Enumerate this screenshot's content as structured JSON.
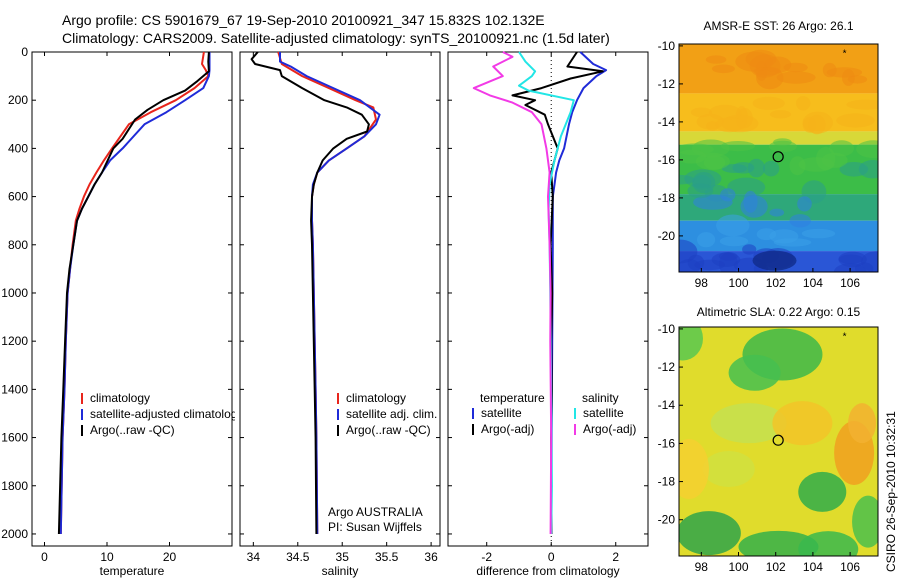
{
  "header": {
    "line1": "Argo profile: CS 5901679_67 19-Sep-2010 20100921_347 15.832S 102.132E",
    "line2": "Climatology: CARS2009. Satellite-adjusted climatology: synTS_20100921.nc (1.5d later)"
  },
  "credit": "CSIRO 26-Sep-2010 10:32:31",
  "colors": {
    "red": "#e8251c",
    "blue": "#1f2bd8",
    "black": "#000000",
    "cyan": "#22e6e6",
    "magenta": "#f23ae6"
  },
  "chart_data": [
    {
      "type": "line",
      "id": "temperature",
      "xlabel": "temperature",
      "xlim": [
        -2,
        30
      ],
      "xticks": [
        0,
        10,
        20
      ],
      "ylim": [
        2050,
        0
      ],
      "yticks": [
        0,
        200,
        400,
        600,
        800,
        1000,
        1200,
        1400,
        1600,
        1800,
        2000
      ],
      "legend": [
        "climatology",
        "satellite-adjusted climatology",
        "Argo(..raw -QC)"
      ],
      "series": [
        {
          "name": "climatology",
          "color": "red",
          "x": [
            25.5,
            25.2,
            25.8,
            26.2,
            24,
            21,
            17,
            13.5,
            10.8,
            9.5,
            8.3,
            7.2,
            6.3,
            5.6,
            5,
            4.5,
            4.1,
            3.7,
            3.4,
            3.2,
            2.9,
            2.6
          ],
          "y": [
            0,
            50,
            75,
            100,
            150,
            200,
            250,
            300,
            400,
            450,
            500,
            550,
            600,
            650,
            700,
            800,
            900,
            1000,
            1200,
            1400,
            1600,
            2000
          ]
        },
        {
          "name": "satellite-adjusted climatology",
          "color": "blue",
          "x": [
            26.4,
            26.4,
            26.4,
            26.3,
            25.4,
            22.5,
            19.5,
            16,
            12.5,
            10.5,
            9.2,
            8,
            7,
            6,
            5.2,
            4.6,
            4.1,
            3.7,
            3.4,
            3.2,
            2.9,
            2.6
          ],
          "y": [
            0,
            50,
            75,
            100,
            150,
            200,
            250,
            300,
            400,
            450,
            500,
            550,
            600,
            650,
            700,
            800,
            900,
            1000,
            1200,
            1400,
            1600,
            2000
          ]
        },
        {
          "name": "Argo(..raw -QC)",
          "color": "black",
          "x": [
            26.3,
            26.2,
            26.3,
            24.5,
            22.5,
            19,
            16.5,
            14.5,
            13.5,
            12.5,
            11,
            9.2,
            8,
            7,
            6,
            5.2,
            4.6,
            4,
            3.6,
            3.3,
            3,
            2.7,
            2.3
          ],
          "y": [
            0,
            40,
            80,
            120,
            160,
            200,
            240,
            280,
            320,
            360,
            400,
            500,
            550,
            600,
            650,
            700,
            800,
            900,
            1000,
            1200,
            1400,
            1600,
            2000
          ]
        }
      ]
    },
    {
      "type": "line",
      "id": "salinity",
      "xlabel": "salinity",
      "xlim": [
        33.85,
        36.1
      ],
      "xticks": [
        34,
        34.5,
        35,
        35.5,
        36
      ],
      "ylim": [
        2050,
        0
      ],
      "yticks": [
        0,
        200,
        400,
        600,
        800,
        1000,
        1200,
        1400,
        1600,
        1800,
        2000
      ],
      "legend": [
        "climatology",
        "satellite adj. clim.",
        "Argo(..raw -QC)"
      ],
      "annotation": [
        "Argo AUSTRALIA",
        "PI: Susan Wijffels"
      ],
      "series": [
        {
          "name": "climatology",
          "color": "red",
          "x": [
            34.28,
            34.32,
            34.55,
            34.85,
            35.15,
            35.35,
            35.38,
            35.25,
            35.05,
            34.85,
            34.72,
            34.68,
            34.66,
            34.66,
            34.67,
            34.68,
            34.69,
            34.7,
            34.71,
            34.72
          ],
          "y": [
            0,
            50,
            100,
            150,
            200,
            230,
            280,
            350,
            400,
            450,
            500,
            550,
            600,
            700,
            800,
            1000,
            1200,
            1400,
            1600,
            2000
          ]
        },
        {
          "name": "satellite adj. clim.",
          "color": "blue",
          "x": [
            34.3,
            34.3,
            34.42,
            34.6,
            34.9,
            35.2,
            35.42,
            35.38,
            35.25,
            35.05,
            34.85,
            34.72,
            34.67,
            34.66,
            34.66,
            34.67,
            34.68,
            34.69,
            34.7,
            34.71,
            34.72
          ],
          "y": [
            0,
            40,
            60,
            100,
            150,
            200,
            260,
            300,
            350,
            400,
            450,
            500,
            550,
            600,
            700,
            800,
            1000,
            1200,
            1400,
            1600,
            2000
          ]
        },
        {
          "name": "Argo(..raw -QC)",
          "color": "black",
          "x": [
            34.05,
            33.98,
            34.02,
            34.3,
            34.32,
            34.55,
            34.8,
            35.05,
            35.22,
            35.3,
            35.28,
            35.05,
            34.9,
            34.78,
            34.72,
            34.68,
            34.66,
            34.65,
            34.66,
            34.67,
            34.68,
            34.69,
            34.7,
            34.71
          ],
          "y": [
            0,
            30,
            50,
            75,
            100,
            150,
            200,
            230,
            260,
            300,
            330,
            360,
            400,
            450,
            500,
            550,
            600,
            700,
            800,
            1000,
            1200,
            1400,
            1600,
            2000
          ]
        }
      ]
    },
    {
      "type": "line",
      "id": "difference",
      "xlabel": "difference from climatology",
      "xlim": [
        -3.2,
        3.0
      ],
      "xticks": [
        -2,
        0,
        2
      ],
      "ylim": [
        2050,
        0
      ],
      "yticks": [
        0,
        200,
        400,
        600,
        800,
        1000,
        1200,
        1400,
        1600,
        1800,
        2000
      ],
      "legend_left": {
        "title": "temperature",
        "items": [
          "satellite",
          "Argo(-adj)"
        ]
      },
      "legend_right": {
        "title": "salinity",
        "items": [
          "satellite",
          "Argo(-adj)"
        ]
      },
      "series": [
        {
          "name": "temperature satellite",
          "color": "blue",
          "x": [
            0.9,
            1.3,
            1.7,
            1.4,
            1.0,
            0.8,
            0.65,
            0.55,
            0.4,
            0.25,
            0.15,
            0.1,
            0.05,
            0.05,
            0.05,
            0.04,
            0.02,
            0.0
          ],
          "y": [
            0,
            50,
            75,
            100,
            150,
            200,
            250,
            300,
            400,
            450,
            500,
            550,
            600,
            700,
            800,
            1000,
            1400,
            2000
          ]
        },
        {
          "name": "temperature Argo(-adj)",
          "color": "black",
          "x": [
            0.8,
            0.5,
            1.6,
            0.6,
            -0.3,
            -1.2,
            -0.5,
            -0.8,
            -0.2,
            -0.1,
            0.2,
            0.0,
            0.05,
            -0.02,
            0.03,
            0.0,
            0.02,
            0.0,
            0.01
          ],
          "y": [
            0,
            60,
            80,
            110,
            150,
            180,
            200,
            220,
            260,
            300,
            400,
            500,
            600,
            800,
            1000,
            1200,
            1400,
            1600,
            2000
          ]
        },
        {
          "name": "salinity satellite",
          "color": "cyan",
          "x": [
            -1.0,
            -0.8,
            -0.5,
            -0.6,
            -1.0,
            -0.7,
            0.7,
            0.6,
            0.3,
            0.1,
            -0.05,
            -0.08,
            -0.05,
            -0.03,
            0.0,
            0.02,
            0.0
          ],
          "y": [
            0,
            40,
            80,
            100,
            140,
            160,
            200,
            250,
            350,
            450,
            550,
            650,
            800,
            1000,
            1400,
            1800,
            2000
          ]
        },
        {
          "name": "salinity Argo(-adj)",
          "color": "magenta",
          "x": [
            -1.5,
            -1.2,
            -1.8,
            -1.5,
            -2.4,
            -1.9,
            -1.2,
            -0.6,
            -0.3,
            -0.15,
            -0.05,
            -0.1,
            -0.05,
            -0.02,
            -0.03,
            0.0,
            -0.02
          ],
          "y": [
            0,
            20,
            60,
            100,
            150,
            180,
            210,
            250,
            300,
            400,
            500,
            600,
            800,
            1000,
            1200,
            1600,
            2000
          ]
        }
      ]
    },
    {
      "type": "heatmap",
      "id": "sst-map",
      "title": "AMSR-E SST: 26 Argo: 26.1",
      "xlim": [
        96.8,
        107.5
      ],
      "ylim": [
        -21.9,
        -9.9
      ],
      "xticks": [
        98,
        100,
        102,
        104,
        106
      ],
      "yticks": [
        -10,
        -12,
        -14,
        -16,
        -18,
        -20
      ],
      "marker": {
        "lon": 102.132,
        "lat": -15.832
      },
      "regions": [
        {
          "color": "#f2a015",
          "y": [
            -9.9,
            -12.5
          ]
        },
        {
          "color": "#f7bd1c",
          "y": [
            -12.5,
            -14.5
          ]
        },
        {
          "color": "#d8d838",
          "y": [
            -14.5,
            -15.2
          ]
        },
        {
          "color": "#3cbd48",
          "y": [
            -15.2,
            -17.8
          ]
        },
        {
          "color": "#2ea87a",
          "y": [
            -17.8,
            -19.2
          ]
        },
        {
          "color": "#2d8fe0",
          "y": [
            -19.2,
            -20.8
          ]
        },
        {
          "color": "#2a56d6",
          "y": [
            -20.8,
            -21.9
          ]
        }
      ]
    },
    {
      "type": "heatmap",
      "id": "sla-map",
      "title": "Altimetric SLA: 0.22 Argo: 0.15",
      "xlim": [
        96.8,
        107.5
      ],
      "ylim": [
        -21.9,
        -9.9
      ],
      "xticks": [
        98,
        100,
        102,
        104,
        106
      ],
      "yticks": [
        -10,
        -12,
        -14,
        -16,
        -18,
        -20
      ],
      "marker": {
        "lon": 102.132,
        "lat": -15.832
      },
      "background": "#e0dc2c"
    }
  ]
}
